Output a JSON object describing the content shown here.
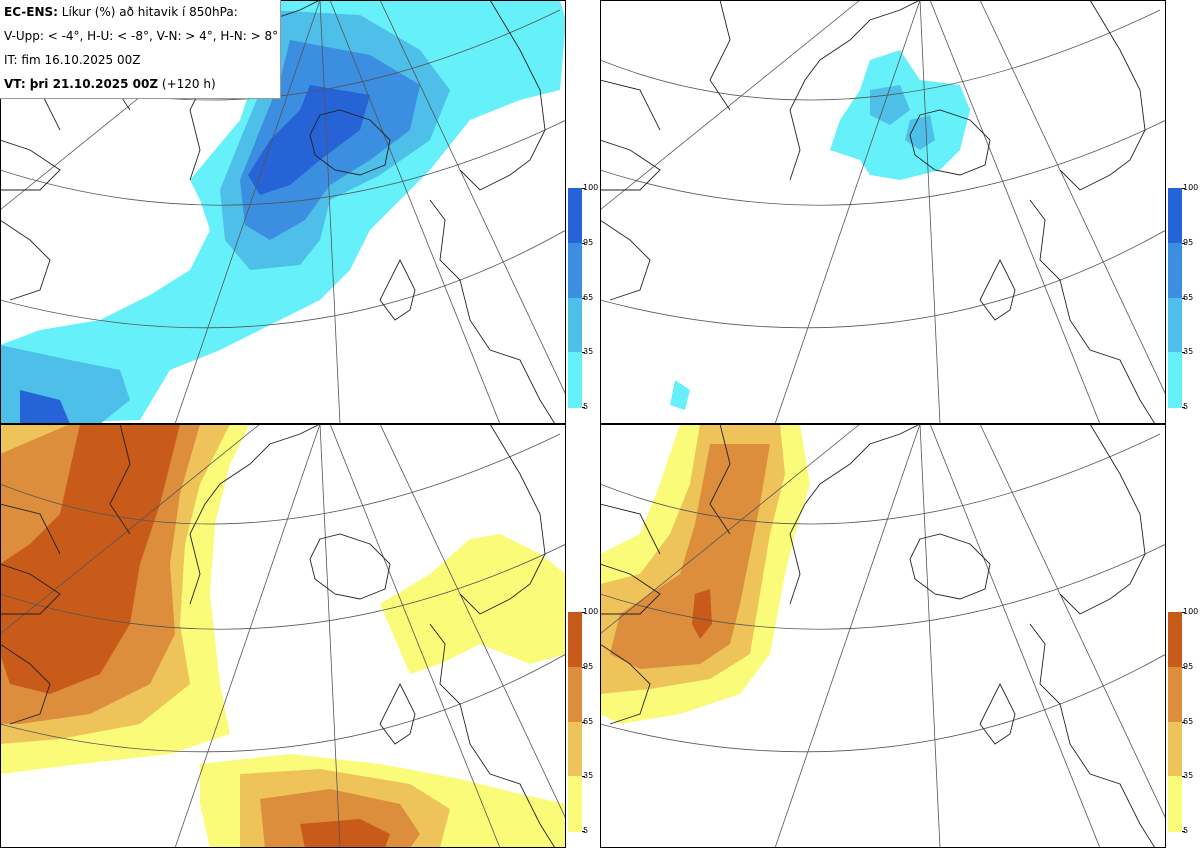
{
  "legend": {
    "line1_bold": "EC-ENS:",
    "line1_rest": " Líkur (%) að hitavik í 850hPa:",
    "line2": "V-Upp: < -4°, H-U: < -8°, V-N: > 4°, H-N: > 8°",
    "line3": "IT: fim 16.10.2025 00Z",
    "line4_bold": "VT: þri 21.10.2025 00Z",
    "line4_rest": " (+120 h)"
  },
  "colorbar": {
    "ticks": [
      "100",
      "95",
      "65",
      "35",
      "5"
    ],
    "blue": [
      "#2563d6",
      "#3b8ee0",
      "#4dbfe8",
      "#66f1fa"
    ],
    "orange": [
      "#c85a1a",
      "#dc8e3c",
      "#eec35a",
      "#fbfb7a"
    ]
  },
  "panels": [
    {
      "name": "upper-left",
      "label": "V-Upp: < -4°",
      "colors": "blue"
    },
    {
      "name": "upper-right",
      "label": "H-U: < -8°",
      "colors": "blue"
    },
    {
      "name": "lower-left",
      "label": "V-N: > 4°",
      "colors": "orange"
    },
    {
      "name": "lower-right",
      "label": "H-N: > 8°",
      "colors": "orange"
    }
  ]
}
